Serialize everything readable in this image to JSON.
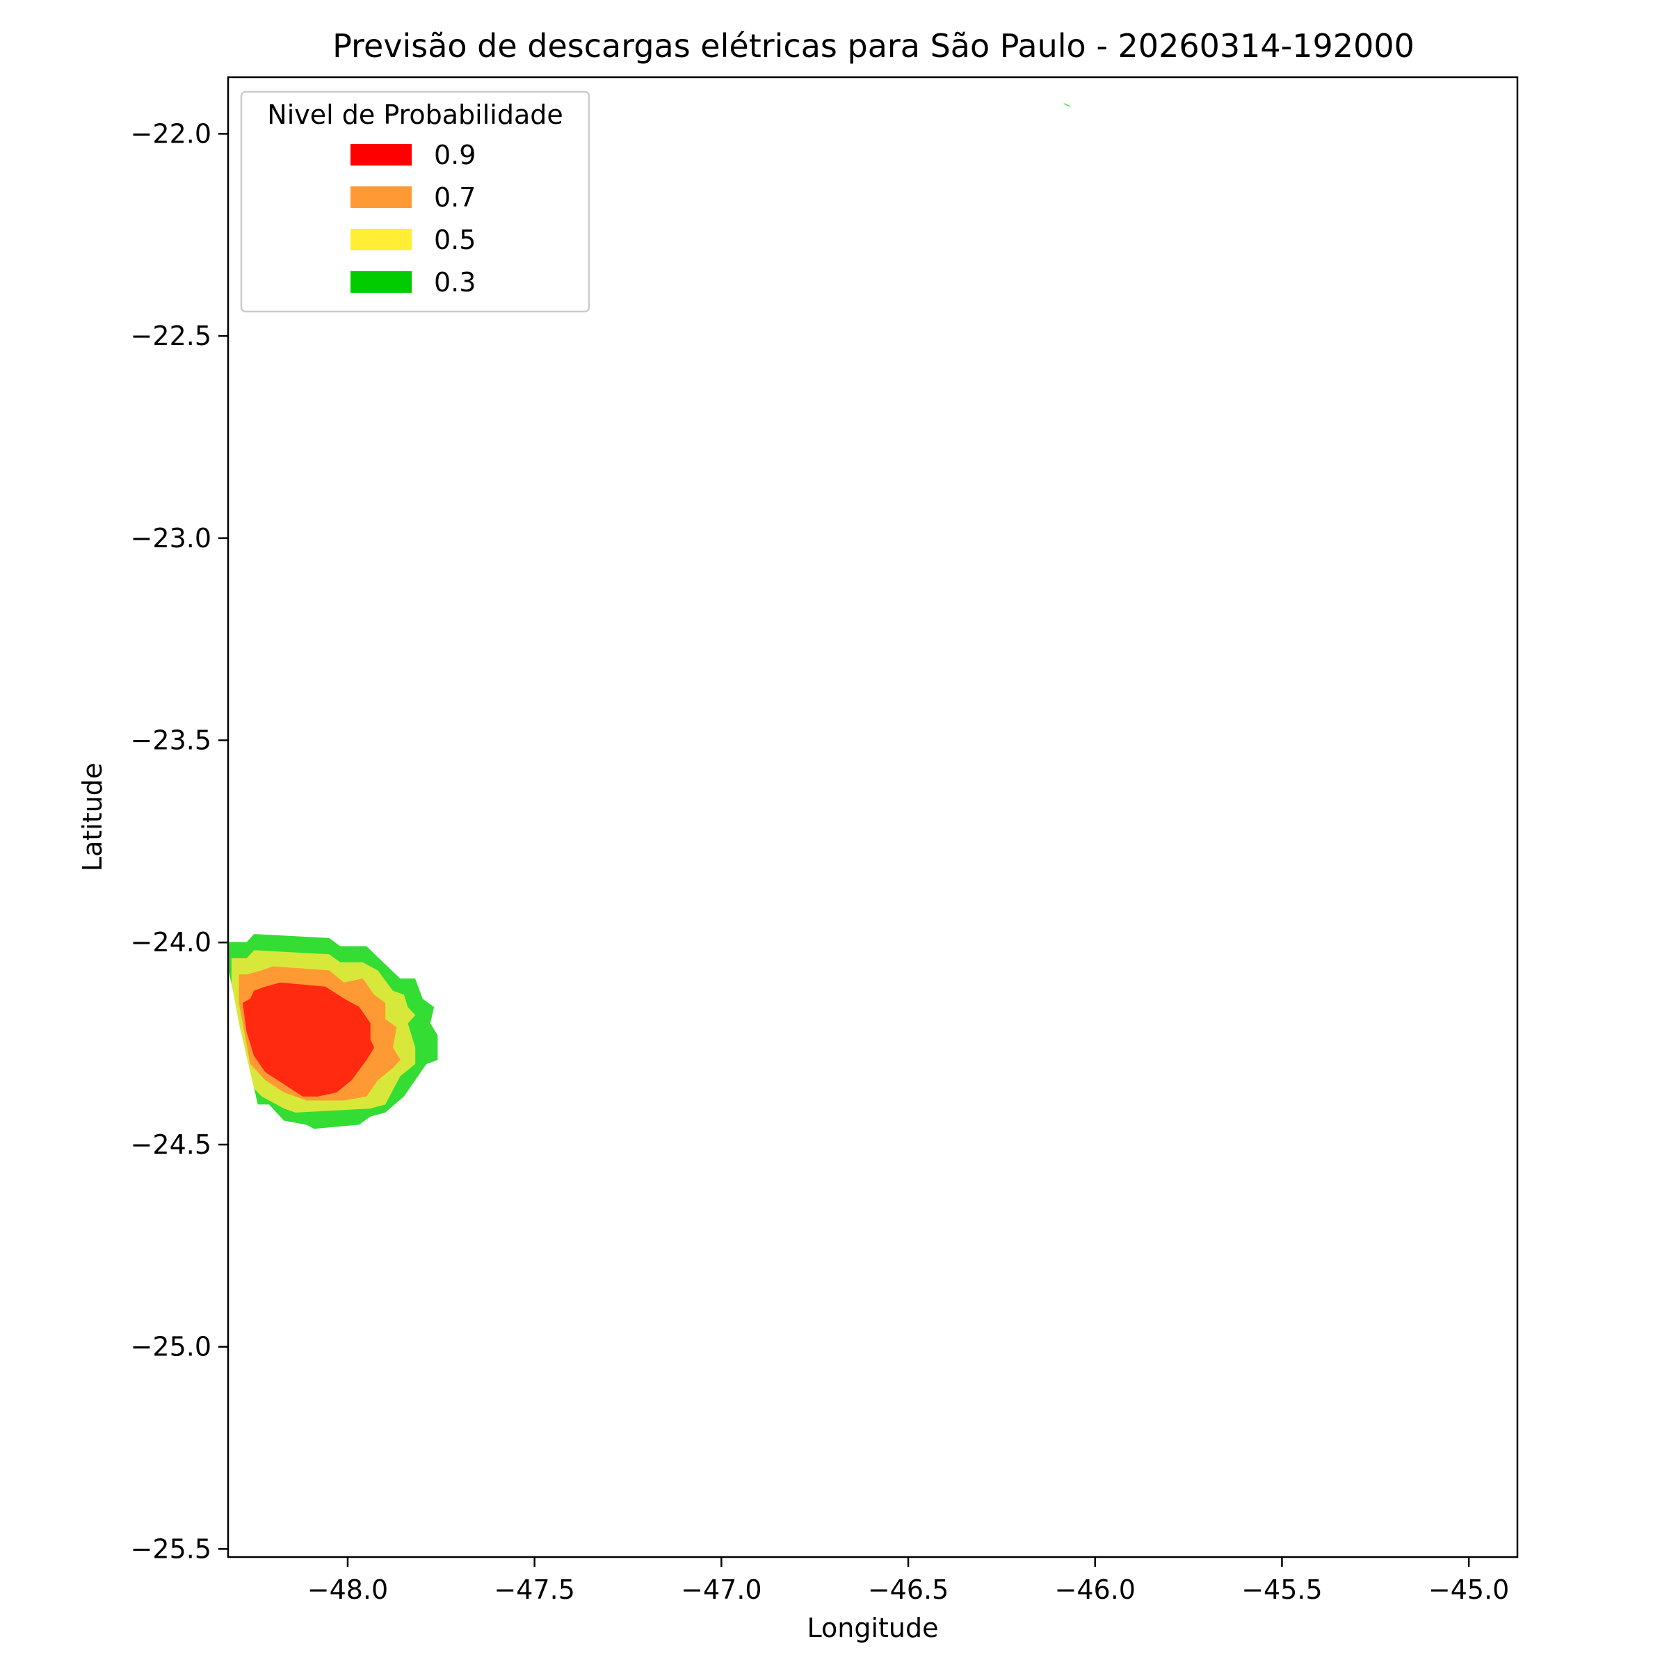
{
  "chart_data": {
    "type": "contour",
    "title": "Previsão de descargas elétricas para São Paulo - 20260314-192000",
    "xlabel": "Longitude",
    "ylabel": "Latitude",
    "xlim": [
      -48.32,
      -44.87
    ],
    "ylim": [
      -25.52,
      -21.86
    ],
    "x_ticks": [
      {
        "value": -48.0,
        "label": "−48.0"
      },
      {
        "value": -47.5,
        "label": "−47.5"
      },
      {
        "value": -47.0,
        "label": "−47.0"
      },
      {
        "value": -46.5,
        "label": "−46.5"
      },
      {
        "value": -46.0,
        "label": "−46.0"
      },
      {
        "value": -45.5,
        "label": "−45.5"
      },
      {
        "value": -45.0,
        "label": "−45.0"
      }
    ],
    "y_ticks": [
      {
        "value": -22.0,
        "label": "−22.0"
      },
      {
        "value": -22.5,
        "label": "−22.5"
      },
      {
        "value": -23.0,
        "label": "−23.0"
      },
      {
        "value": -23.5,
        "label": "−23.5"
      },
      {
        "value": -24.0,
        "label": "−24.0"
      },
      {
        "value": -24.5,
        "label": "−24.5"
      },
      {
        "value": -25.0,
        "label": "−25.0"
      },
      {
        "value": -25.5,
        "label": "−25.5"
      }
    ],
    "grid": false,
    "legend": {
      "title": "Nivel de Probabilidade",
      "position": "top-left",
      "entries": [
        {
          "label": "0.9",
          "color": "#ff0000"
        },
        {
          "label": "0.7",
          "color": "#ff9933"
        },
        {
          "label": "0.5",
          "color": "#ffee33"
        },
        {
          "label": "0.3",
          "color": "#00cc00"
        }
      ]
    },
    "regions": [
      {
        "level": "0.3",
        "color": "#33dd33",
        "points": [
          [
            -48.32,
            -24.0
          ],
          [
            -48.27,
            -24.0
          ],
          [
            -48.25,
            -23.98
          ],
          [
            -48.05,
            -23.99
          ],
          [
            -48.02,
            -24.01
          ],
          [
            -47.95,
            -24.01
          ],
          [
            -47.86,
            -24.09
          ],
          [
            -47.82,
            -24.09
          ],
          [
            -47.8,
            -24.14
          ],
          [
            -47.77,
            -24.16
          ],
          [
            -47.78,
            -24.2
          ],
          [
            -47.76,
            -24.23
          ],
          [
            -47.76,
            -24.29
          ],
          [
            -47.79,
            -24.3
          ],
          [
            -47.85,
            -24.38
          ],
          [
            -47.9,
            -24.42
          ],
          [
            -47.94,
            -24.43
          ],
          [
            -47.97,
            -24.45
          ],
          [
            -48.09,
            -24.46
          ],
          [
            -48.11,
            -24.45
          ],
          [
            -48.17,
            -24.44
          ],
          [
            -48.21,
            -24.4
          ],
          [
            -48.24,
            -24.4
          ],
          [
            -48.32,
            -24.06
          ]
        ]
      },
      {
        "level": "0.5",
        "color": "#d8e83a",
        "points": [
          [
            -48.31,
            -24.04
          ],
          [
            -48.27,
            -24.04
          ],
          [
            -48.25,
            -24.02
          ],
          [
            -48.05,
            -24.03
          ],
          [
            -48.02,
            -24.05
          ],
          [
            -47.96,
            -24.05
          ],
          [
            -47.92,
            -24.07
          ],
          [
            -47.88,
            -24.12
          ],
          [
            -47.85,
            -24.13
          ],
          [
            -47.84,
            -24.16
          ],
          [
            -47.82,
            -24.18
          ],
          [
            -47.84,
            -24.2
          ],
          [
            -47.82,
            -24.26
          ],
          [
            -47.82,
            -24.3
          ],
          [
            -47.86,
            -24.33
          ],
          [
            -47.9,
            -24.4
          ],
          [
            -47.94,
            -24.41
          ],
          [
            -48.14,
            -24.42
          ],
          [
            -48.17,
            -24.41
          ],
          [
            -48.23,
            -24.38
          ],
          [
            -48.25,
            -24.36
          ],
          [
            -48.29,
            -24.2
          ],
          [
            -48.31,
            -24.1
          ]
        ]
      },
      {
        "level": "0.7",
        "color": "#ff9933",
        "points": [
          [
            -48.29,
            -24.08
          ],
          [
            -48.27,
            -24.08
          ],
          [
            -48.23,
            -24.07
          ],
          [
            -48.2,
            -24.06
          ],
          [
            -48.05,
            -24.07
          ],
          [
            -48.01,
            -24.1
          ],
          [
            -47.96,
            -24.09
          ],
          [
            -47.93,
            -24.13
          ],
          [
            -47.9,
            -24.15
          ],
          [
            -47.9,
            -24.19
          ],
          [
            -47.87,
            -24.21
          ],
          [
            -47.88,
            -24.26
          ],
          [
            -47.86,
            -24.29
          ],
          [
            -47.88,
            -24.31
          ],
          [
            -47.92,
            -24.34
          ],
          [
            -47.95,
            -24.38
          ],
          [
            -48.01,
            -24.39
          ],
          [
            -48.11,
            -24.39
          ],
          [
            -48.17,
            -24.37
          ],
          [
            -48.22,
            -24.34
          ],
          [
            -48.26,
            -24.3
          ],
          [
            -48.29,
            -24.15
          ]
        ]
      },
      {
        "level": "0.9",
        "color": "#ff2a10",
        "points": [
          [
            -48.28,
            -24.15
          ],
          [
            -48.26,
            -24.14
          ],
          [
            -48.25,
            -24.12
          ],
          [
            -48.22,
            -24.11
          ],
          [
            -48.18,
            -24.1
          ],
          [
            -48.06,
            -24.11
          ],
          [
            -48.01,
            -24.14
          ],
          [
            -47.97,
            -24.16
          ],
          [
            -47.94,
            -24.2
          ],
          [
            -47.94,
            -24.24
          ],
          [
            -47.93,
            -24.26
          ],
          [
            -47.95,
            -24.29
          ],
          [
            -47.99,
            -24.34
          ],
          [
            -48.03,
            -24.37
          ],
          [
            -48.08,
            -24.38
          ],
          [
            -48.12,
            -24.38
          ],
          [
            -48.17,
            -24.35
          ],
          [
            -48.22,
            -24.32
          ],
          [
            -48.25,
            -24.28
          ],
          [
            -48.27,
            -24.22
          ]
        ]
      },
      {
        "level": "0.3",
        "color": "#33dd33",
        "points": [
          [
            -46.084,
            -21.925
          ],
          [
            -46.066,
            -21.932
          ],
          [
            -46.074,
            -21.93
          ]
        ]
      }
    ]
  }
}
